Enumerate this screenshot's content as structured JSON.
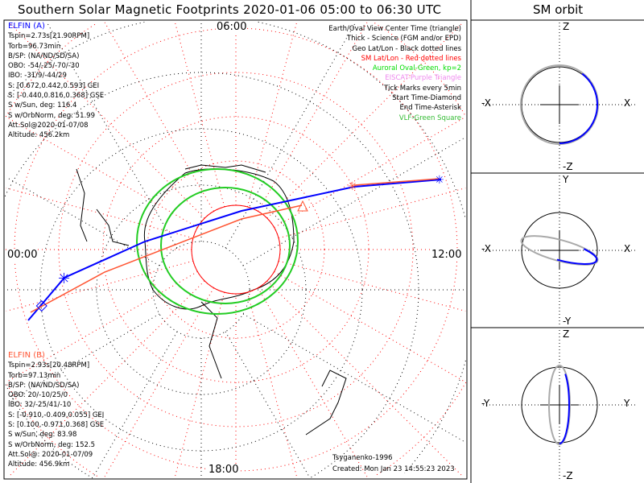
{
  "title": "Southern Solar Magnetic Footprints 2020-01-06 05:00 to 06:30 UTC",
  "sm_title": "SM orbit",
  "hour_labels": {
    "top": "06:00",
    "right": "12:00",
    "bottom": "18:00",
    "left": "00:00"
  },
  "elfin_a": {
    "name": "ELFIN (A)",
    "color": "#0000ff",
    "lines": [
      "Tspin=2.73s[21.90RPM]",
      "Torb=96.73min",
      "B/SP: (NA/ND/SD/SA)",
      "OBO: -54/-25/-70/-30",
      "IBO: -31/9/-44/29",
      "S: [0.672,0.442,0.593] GEI",
      "S: [-0.440,0.816,0.368] GSE",
      "S w/Sun, deg: 116.4",
      "S w/OrbNorm, deg: 51.99",
      "Att.Sol@2020-01-07/08",
      "Altitude: 456.2km"
    ]
  },
  "elfin_b": {
    "name": "ELFIN (B)",
    "color": "#ff5533",
    "lines": [
      "Tspin=2.93s[20.48RPM]",
      "Torb=97.13min",
      "B/SP: (NA/ND/SD/SA)",
      "OBO: 20/-10/25/0",
      "IBO: 32/-25/41/-10",
      "S: [-0.910,-0.409,0.055] GEI",
      "S: [0.100,-0.971,0.368] GSE",
      "S w/Sun, deg: 83.98",
      "S w/OrbNorm, deg: 152.5",
      "Att.Sol@: 2020-01-07/09",
      "Altitude: 456.9km"
    ]
  },
  "legend": [
    {
      "text": "Earth/Oval View Center Time (triangle)",
      "color": "#000000"
    },
    {
      "text": "Thick - Science (FGM and/or EPD)",
      "color": "#000000"
    },
    {
      "text": "Geo Lat/Lon - Black dotted lines",
      "color": "#000000"
    },
    {
      "text": "SM Lat/Lon - Red dotted lines",
      "color": "#ff0000"
    },
    {
      "text": "Auroral Oval-Green, kp=2",
      "color": "#00dd00"
    },
    {
      "text": "EISCAT-Purple Triangle",
      "color": "#ee88ee"
    },
    {
      "text": "Tick Marks every 5min",
      "color": "#000000"
    },
    {
      "text": "Start Time-Diamond",
      "color": "#000000"
    },
    {
      "text": "End Time-Asterisk",
      "color": "#000000"
    },
    {
      "text": "VLF-Green Square",
      "color": "#33bb33"
    }
  ],
  "footer": {
    "model": "Tsyganenko-1996",
    "created": "Created: Mon Jan 23 14:55:23 2023"
  },
  "orbit_panels": [
    {
      "top": "Z",
      "bottom": "-Z",
      "left": "-X",
      "right": "X"
    },
    {
      "top": "Y",
      "bottom": "-Y",
      "left": "-X",
      "right": "X"
    },
    {
      "top": "Z",
      "bottom": "-Z",
      "left": "-Y",
      "right": "Y"
    }
  ],
  "chart_data": {
    "type": "polar-map",
    "title": "Southern Solar Magnetic Footprints 2020-01-06 05:00 to 06:30 UTC",
    "series": [
      {
        "name": "ELFIN (A)",
        "color": "#0000ff"
      },
      {
        "name": "ELFIN (B)",
        "color": "#ff5533"
      }
    ],
    "grid": true
  }
}
